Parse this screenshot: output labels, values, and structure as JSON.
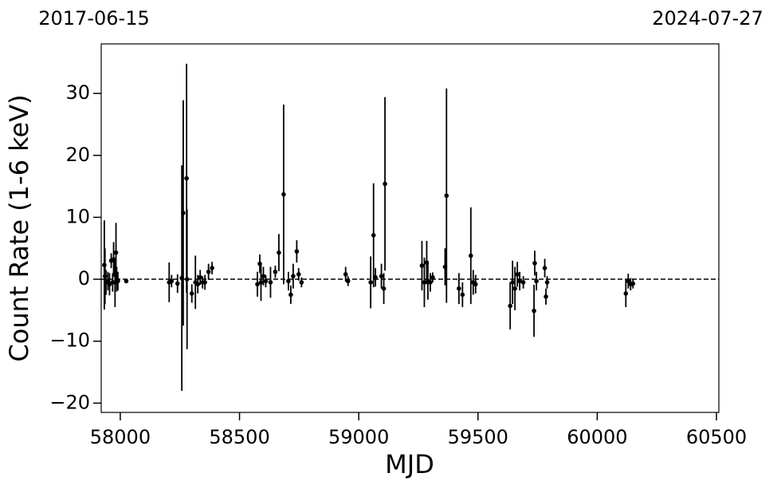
{
  "chart_data": {
    "type": "errorbar",
    "top_left_label": "2017-06-15",
    "top_right_label": "2024-07-27",
    "xlabel": "MJD",
    "ylabel": "Count Rate (1-6 keV)",
    "xlim": [
      57920,
      60510
    ],
    "ylim": [
      -21.5,
      38
    ],
    "xticks": [
      58000,
      58500,
      59000,
      59500,
      60000,
      60500
    ],
    "yticks": [
      {
        "value": -20,
        "label": "−20"
      },
      {
        "value": -10,
        "label": "−10"
      },
      0,
      10,
      20,
      30
    ],
    "hline": 0,
    "series": [
      {
        "color": "#000000",
        "x": [
          57933,
          57936,
          57940,
          57948,
          57955,
          57962,
          57968,
          57972,
          57978,
          57982,
          57985,
          57990,
          58025,
          58205,
          58215,
          58240,
          58258,
          58264,
          58278,
          58280,
          58300,
          58315,
          58325,
          58335,
          58345,
          58355,
          58370,
          58385,
          58575,
          58585,
          58590,
          58600,
          58610,
          58630,
          58650,
          58665,
          58685,
          58705,
          58715,
          58725,
          58740,
          58748,
          58760,
          58945,
          58955,
          59050,
          59062,
          59070,
          59095,
          59105,
          59110,
          59265,
          59275,
          59285,
          59290,
          59300,
          59310,
          59362,
          59368,
          59420,
          59435,
          59470,
          59480,
          59490,
          59635,
          59645,
          59655,
          59665,
          59675,
          59690,
          59735,
          59738,
          59745,
          59780,
          59785,
          59790,
          60120,
          60130,
          60140,
          60150
        ],
        "values": [
          2.3,
          0.5,
          -0.5,
          -0.3,
          -0.8,
          3.0,
          -0.5,
          3.2,
          -0.5,
          4.3,
          0,
          -0.3,
          -0.3,
          -0.5,
          -0.3,
          -0.7,
          0.2,
          10.7,
          16.3,
          0,
          -2.3,
          -0.5,
          -0.8,
          0.3,
          -0.5,
          -0.5,
          1.2,
          1.8,
          -0.8,
          2.5,
          -0.5,
          0.5,
          -0.3,
          -0.5,
          1.2,
          4.3,
          13.7,
          -0.3,
          -2.5,
          0.5,
          4.5,
          0.8,
          -0.5,
          0.8,
          -0.3,
          -0.5,
          7.1,
          0.3,
          0.5,
          -1.5,
          15.4,
          2.2,
          -0.5,
          2.7,
          -0.3,
          -0.5,
          0.3,
          2,
          13.5,
          -1.5,
          -2.5,
          3.8,
          -0.5,
          -0.8,
          -4.3,
          -0.5,
          -1.5,
          0.8,
          -0.3,
          -0.5,
          -5.1,
          2.6,
          -0.3,
          1.8,
          -2.8,
          -0.5,
          -2.3,
          -0.3,
          -0.8,
          -0.7
        ],
        "errors": [
          7.2,
          4.5,
          2,
          1.5,
          1.8,
          1.2,
          1.5,
          2.8,
          4,
          4.8,
          2,
          1.5,
          0.3,
          3.2,
          1,
          1.5,
          18.2,
          18.2,
          18.5,
          11.3,
          1.5,
          4.3,
          1.5,
          1.2,
          1,
          1.2,
          1.3,
          1,
          2,
          1.5,
          3,
          1.5,
          1,
          2.5,
          1,
          3,
          14.5,
          1.5,
          1.5,
          2,
          1.8,
          1,
          0.8,
          1.2,
          0.8,
          4.2,
          8.4,
          1.5,
          2,
          2.5,
          14,
          4,
          4,
          3.5,
          3,
          1.5,
          0.8,
          3,
          17.3,
          2.5,
          2,
          7.8,
          2,
          1.5,
          3.8,
          3.5,
          3.5,
          2,
          1.5,
          1,
          4.2,
          2,
          1.5,
          1.5,
          1.3,
          1,
          2.2,
          1.2,
          1,
          0.8
        ]
      }
    ]
  }
}
